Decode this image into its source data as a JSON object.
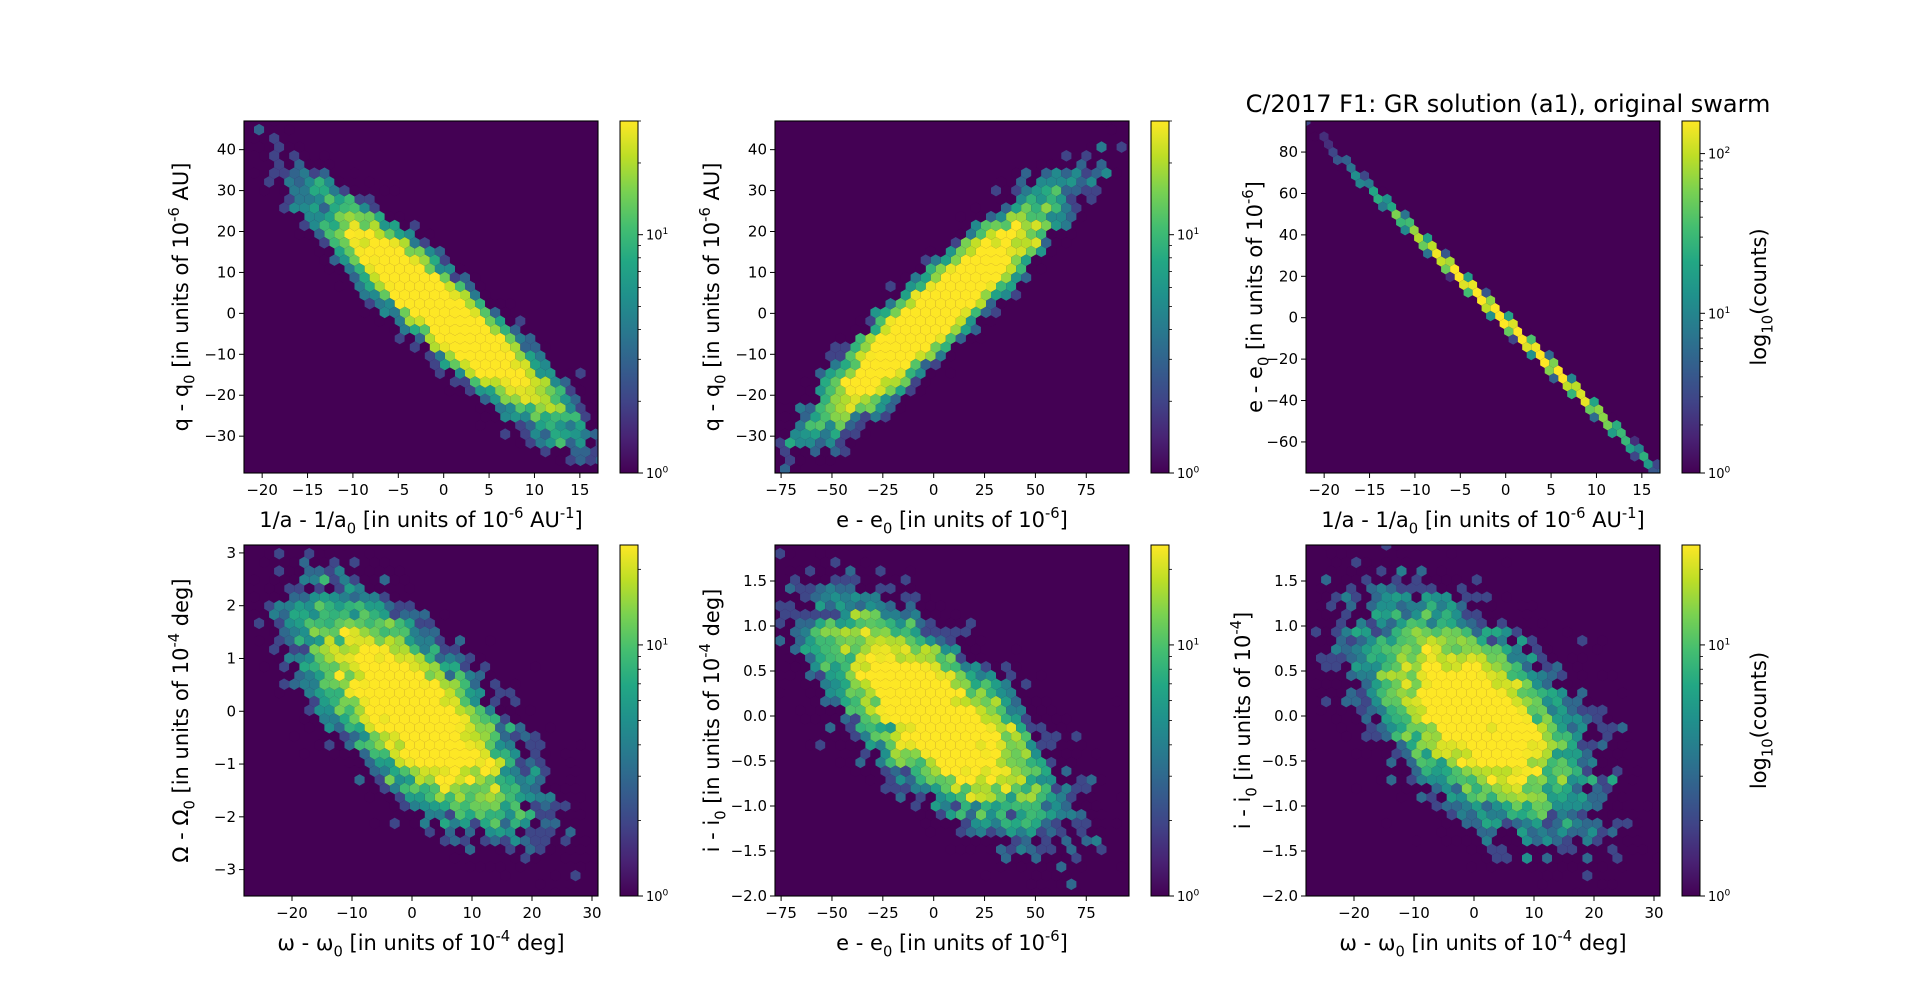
{
  "title": "C/2017 F1: GR solution (a1), original swarm",
  "chart_data": [
    {
      "type": "heatmap",
      "subtype": "hexbin",
      "xlabel": "1/a - 1/a_0 [in units of 10^{-6} AU^{-1}]",
      "ylabel": "q - q_0 [in units of 10^{-6} AU]",
      "xlim": [
        -22,
        17
      ],
      "ylim": [
        -39,
        47
      ],
      "xticks": [
        -20,
        -15,
        -10,
        -5,
        0,
        5,
        10,
        15
      ],
      "yticks": [
        -30,
        -20,
        -10,
        0,
        10,
        20,
        30,
        40
      ],
      "center": [
        0,
        0
      ],
      "sigma": [
        6.5,
        13.5
      ],
      "correlation": -0.93,
      "colorbar": {
        "scale": "log",
        "ticks": [
          "10^0",
          "10^1"
        ],
        "vmin": 1,
        "vmax": 30,
        "label": ""
      }
    },
    {
      "type": "heatmap",
      "subtype": "hexbin",
      "xlabel": "e - e_0 [in units of 10^{-6}]",
      "ylabel": "q - q_0 [in units of 10^{-6} AU]",
      "xlim": [
        -78,
        96
      ],
      "ylim": [
        -39,
        47
      ],
      "xticks": [
        -75,
        -50,
        -25,
        0,
        25,
        50,
        75
      ],
      "yticks": [
        -30,
        -20,
        -10,
        0,
        10,
        20,
        30,
        40
      ],
      "center": [
        0,
        0
      ],
      "sigma": [
        28,
        13.5
      ],
      "correlation": 0.93,
      "colorbar": {
        "scale": "log",
        "ticks": [
          "10^0",
          "10^1"
        ],
        "vmin": 1,
        "vmax": 30,
        "label": ""
      }
    },
    {
      "type": "heatmap",
      "subtype": "hexbin",
      "xlabel": "1/a - 1/a_0 [in units of 10^{-6} AU^{-1}]",
      "ylabel": "e - e_0 [in units of 10^{-6}]",
      "xlim": [
        -22,
        17
      ],
      "ylim": [
        -75,
        95
      ],
      "xticks": [
        -20,
        -15,
        -10,
        -5,
        0,
        5,
        10,
        15
      ],
      "yticks": [
        -60,
        -40,
        -20,
        0,
        20,
        40,
        60,
        80
      ],
      "line": {
        "x": [
          -19,
          16
        ],
        "y": [
          80,
          -71
        ]
      },
      "center": [
        0,
        0
      ],
      "sigma": [
        6.5,
        28
      ],
      "correlation": -1.0,
      "colorbar": {
        "scale": "log",
        "ticks": [
          "10^0",
          "10^1",
          "10^2"
        ],
        "vmin": 1,
        "vmax": 160,
        "label": "log_{10}(counts)"
      }
    },
    {
      "type": "heatmap",
      "subtype": "hexbin",
      "xlabel": "ω - ω_0 [in units of 10^{-4} deg]",
      "ylabel": "Ω - Ω_0 [in units of 10^{-4} deg]",
      "xlim": [
        -28,
        31
      ],
      "ylim": [
        -3.5,
        3.15
      ],
      "xticks": [
        -20,
        -10,
        0,
        10,
        20,
        30
      ],
      "yticks": [
        -3,
        -2,
        -1,
        0,
        1,
        2,
        3
      ],
      "center": [
        0,
        0
      ],
      "sigma": [
        9,
        1.05
      ],
      "correlation": -0.72,
      "colorbar": {
        "scale": "log",
        "ticks": [
          "10^0",
          "10^1"
        ],
        "vmin": 1,
        "vmax": 25,
        "label": ""
      }
    },
    {
      "type": "heatmap",
      "subtype": "hexbin",
      "xlabel": "e - e_0 [in units of 10^{-6}]",
      "ylabel": "i - i_0 [in units of 10^{-4} deg]",
      "xlim": [
        -78,
        96
      ],
      "ylim": [
        -2.0,
        1.9
      ],
      "xticks": [
        -75,
        -50,
        -25,
        0,
        25,
        50,
        75
      ],
      "yticks": [
        -2.0,
        -1.5,
        -1.0,
        -0.5,
        0.0,
        0.5,
        1.0,
        1.5
      ],
      "center": [
        0,
        0
      ],
      "sigma": [
        28,
        0.6
      ],
      "correlation": -0.72,
      "colorbar": {
        "scale": "log",
        "ticks": [
          "10^0",
          "10^1"
        ],
        "vmin": 1,
        "vmax": 25,
        "label": ""
      }
    },
    {
      "type": "heatmap",
      "subtype": "hexbin",
      "xlabel": "ω - ω_0 [in units of 10^{-4} deg]",
      "ylabel": "i - i_0 [in units of 10^{-4}]",
      "xlim": [
        -28,
        31
      ],
      "ylim": [
        -2.0,
        1.9
      ],
      "xticks": [
        -20,
        -10,
        0,
        10,
        20,
        30
      ],
      "yticks": [
        -2.0,
        -1.5,
        -1.0,
        -0.5,
        0.0,
        0.5,
        1.0,
        1.5
      ],
      "center": [
        0,
        0
      ],
      "sigma": [
        9,
        0.6
      ],
      "correlation": -0.55,
      "colorbar": {
        "scale": "log",
        "ticks": [
          "10^0",
          "10^1"
        ],
        "vmin": 1,
        "vmax": 25,
        "label": "log_{10}(counts)"
      }
    }
  ]
}
